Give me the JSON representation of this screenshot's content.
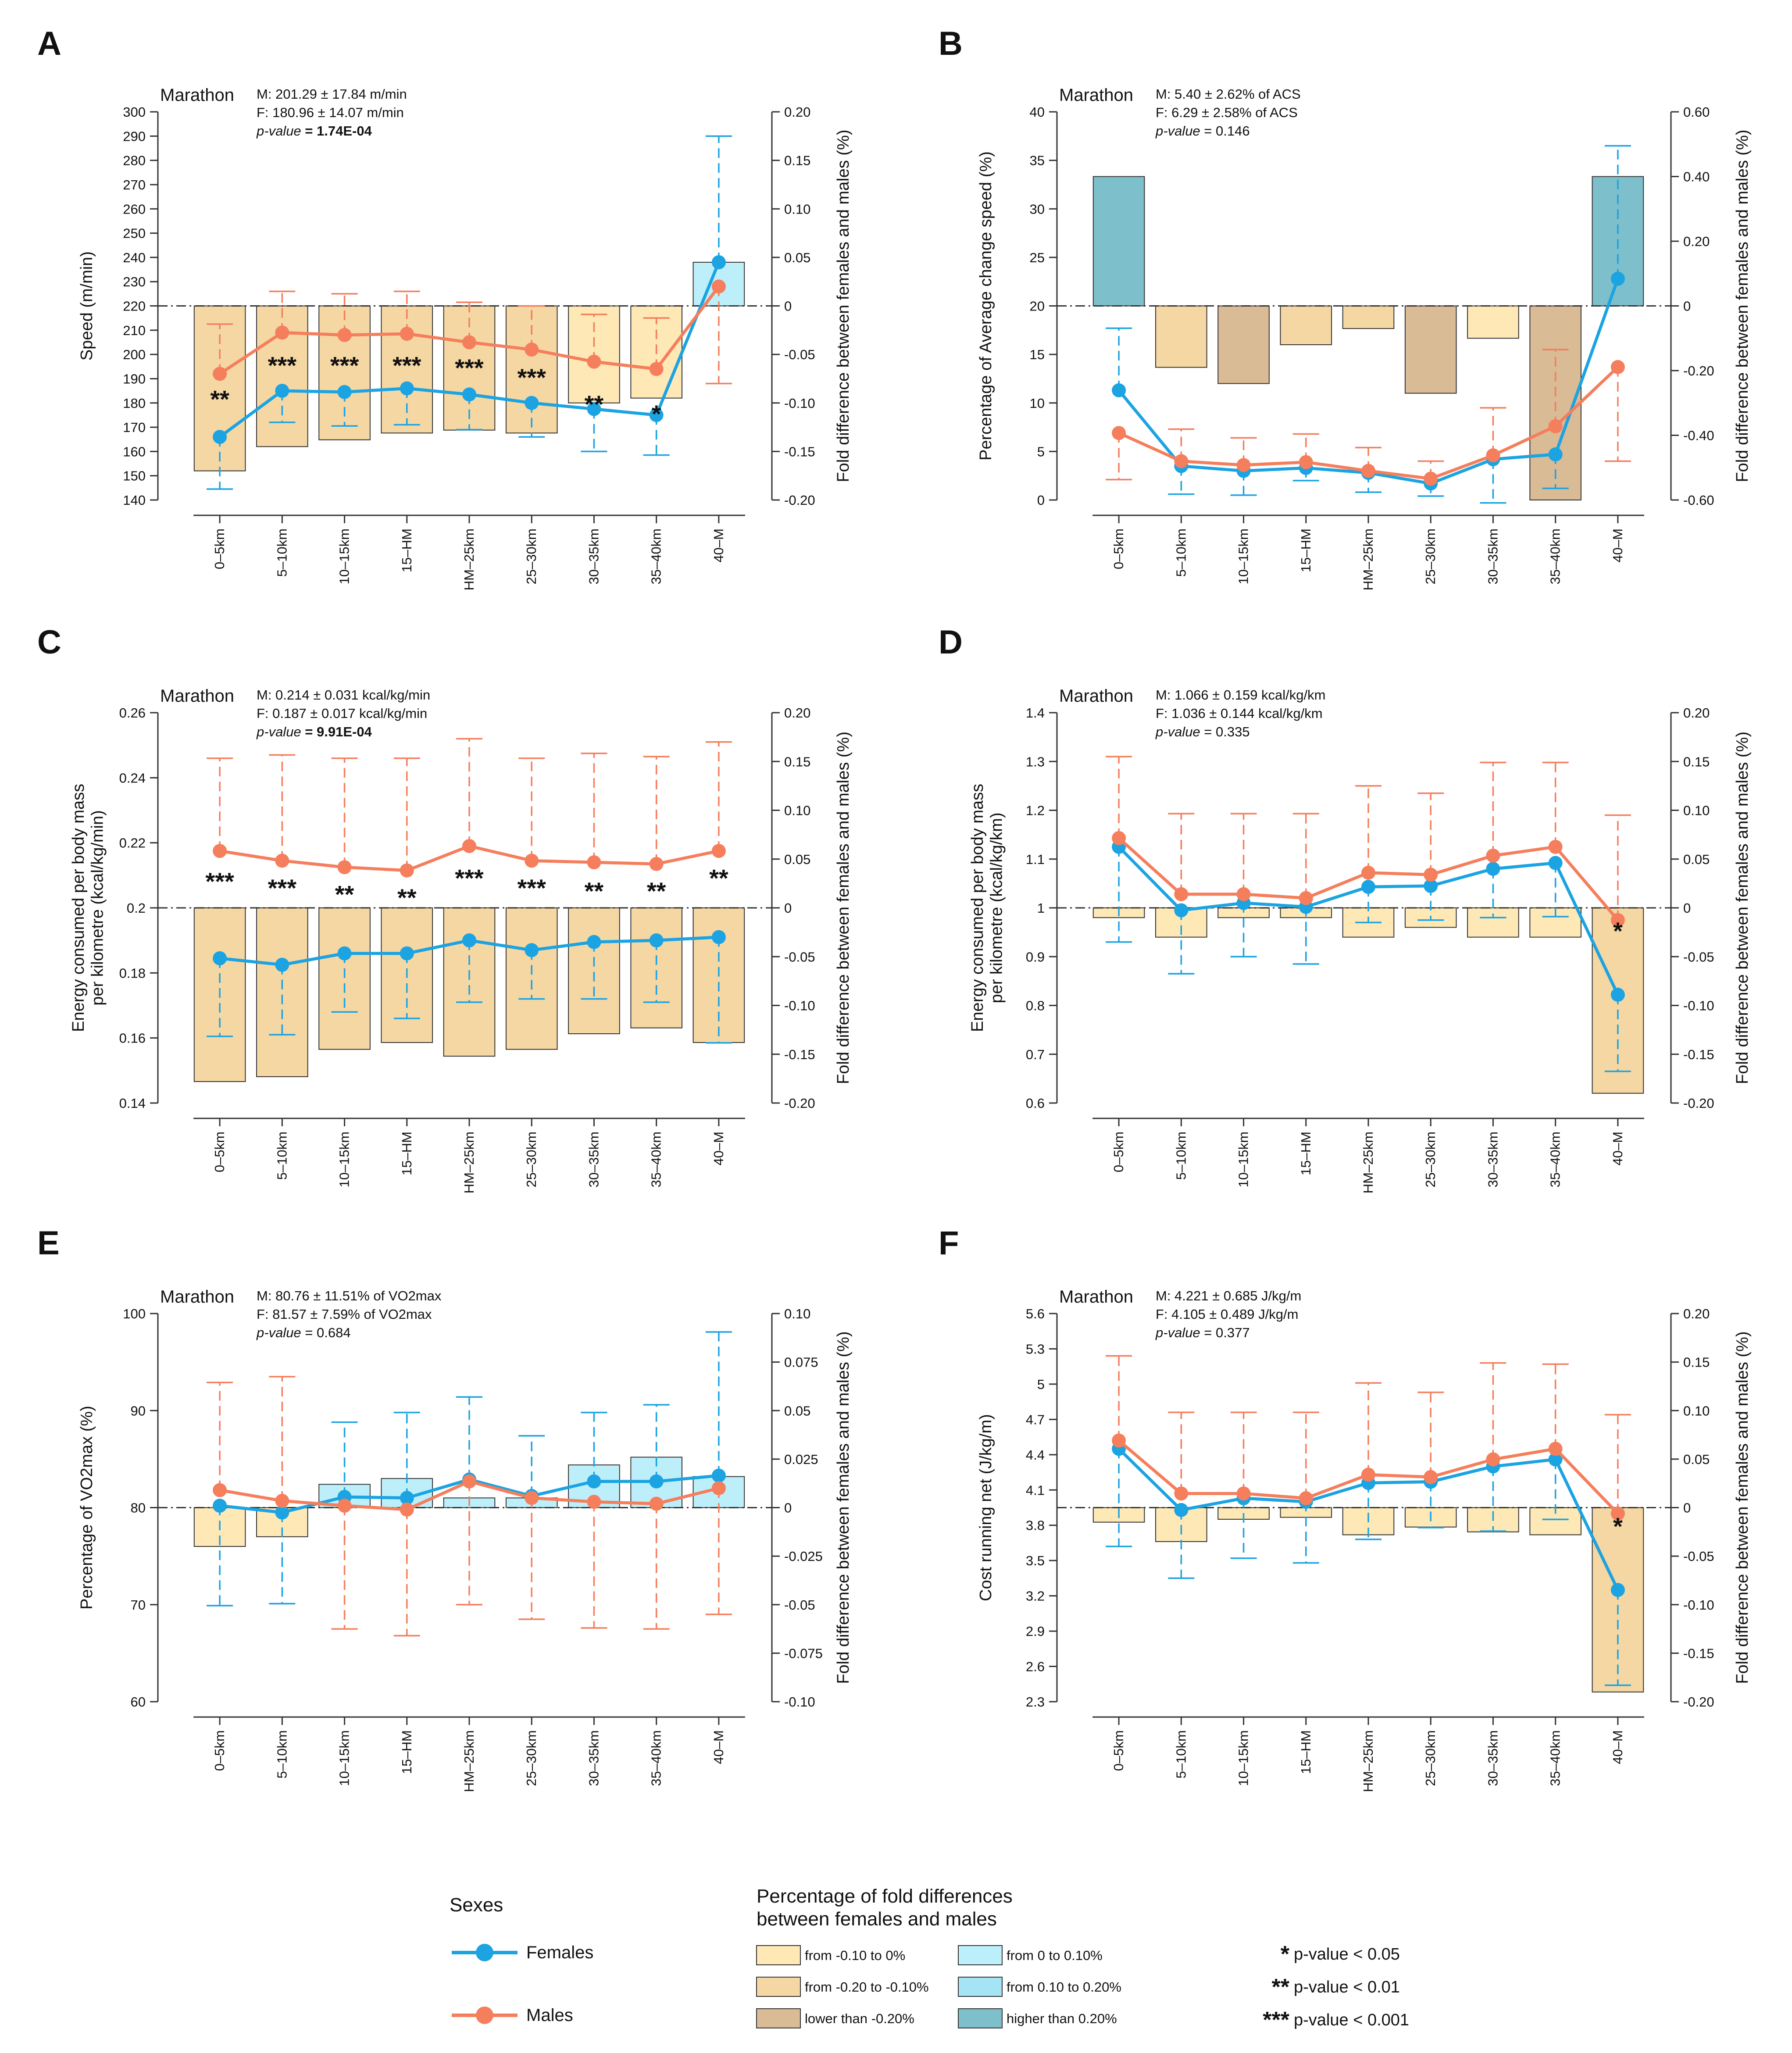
{
  "colors": {
    "female": "#1BA3E2",
    "male": "#F57E5C",
    "bar_neg_small": "#FDE8B6",
    "bar_neg_mid": "#F5D7A3",
    "bar_neg_large": "#D9BB96",
    "bar_pos_small": "#BDEFFB",
    "bar_pos_mid": "#A5E4F5",
    "bar_pos_large": "#7DBFCB",
    "axis": "#333333"
  },
  "chart_data": [
    {
      "letter": "A",
      "type": "bar+line",
      "title": "Marathon",
      "stat_m": "M: 201.29 ± 17.84 m/min",
      "stat_f": "F: 180.96 ± 14.07 m/min",
      "pvalue_label": "p-value",
      "pvalue_text": " = 1.74E-04",
      "pvalue_bold": true,
      "ylabel": "Speed (m/min)",
      "y2label": "Fold difference between females and males (%)",
      "ylim": [
        140,
        300
      ],
      "yticks": [
        140,
        150,
        160,
        170,
        180,
        190,
        200,
        210,
        220,
        230,
        240,
        250,
        260,
        270,
        280,
        290,
        300
      ],
      "y2lim": [
        -0.2,
        0.2
      ],
      "y2ticks": [
        "-0.20",
        "-0.15",
        "-0.10",
        "-0.05",
        "0",
        "0.05",
        "0.10",
        "0.15",
        "0.20"
      ],
      "categories": [
        "0–5km",
        "5–10km",
        "10–15km",
        "15–HM",
        "HM–25km",
        "25–30km",
        "30–35km",
        "35–40km",
        "40–M"
      ],
      "series": [
        {
          "name": "Females",
          "values": [
            166,
            185,
            184.5,
            186,
            183.5,
            180,
            177.5,
            175,
            238
          ],
          "err_high": [
            null,
            null,
            null,
            null,
            null,
            null,
            null,
            null,
            290
          ],
          "err_low": [
            144.5,
            172,
            170.5,
            171,
            169,
            166,
            160,
            158.5,
            null
          ]
        },
        {
          "name": "Males",
          "values": [
            192,
            209,
            208,
            208.5,
            205,
            202,
            197,
            194,
            228
          ],
          "err_high": [
            212.5,
            226,
            225,
            226,
            221.5,
            220,
            216.5,
            215,
            null
          ],
          "err_low": [
            null,
            null,
            null,
            null,
            null,
            null,
            null,
            null,
            188
          ]
        }
      ],
      "fold_diff": [
        -0.17,
        -0.145,
        -0.138,
        -0.131,
        -0.128,
        -0.131,
        -0.1,
        -0.095,
        0.045
      ],
      "bar_class": [
        "mid",
        "mid",
        "mid",
        "mid",
        "mid",
        "mid",
        "small",
        "small",
        "small_pos"
      ],
      "significance": [
        "**",
        "***",
        "***",
        "***",
        "***",
        "***",
        "**",
        "*",
        ""
      ],
      "sig_y": [
        182,
        196,
        196,
        196,
        195,
        191,
        180,
        176,
        null
      ]
    },
    {
      "letter": "B",
      "type": "bar+line",
      "title": "Marathon",
      "stat_m": "M: 5.40 ± 2.62% of ACS",
      "stat_f": "F: 6.29 ± 2.58% of ACS",
      "pvalue_label": "p-value",
      "pvalue_text": " = 0.146",
      "pvalue_bold": false,
      "ylabel": "Percentage of Average change speed (%)",
      "y2label": "Fold difference between females and males (%)",
      "ylim": [
        0,
        40
      ],
      "yticks": [
        0,
        5,
        10,
        15,
        20,
        25,
        30,
        35,
        40
      ],
      "y2lim": [
        -0.6,
        0.6
      ],
      "y2ticks": [
        "-0.60",
        "-0.40",
        "-0.20",
        "0",
        "0.20",
        "0.40",
        "0.60"
      ],
      "categories": [
        "0–5km",
        "5–10km",
        "10–15km",
        "15–HM",
        "HM–25km",
        "25–30km",
        "30–35km",
        "35–40km",
        "40–M"
      ],
      "series": [
        {
          "name": "Females",
          "values": [
            11.3,
            3.5,
            3.0,
            3.3,
            2.8,
            1.7,
            4.2,
            4.7,
            22.8
          ],
          "err_high": [
            17.7,
            null,
            null,
            null,
            null,
            null,
            null,
            null,
            36.5
          ],
          "err_low": [
            null,
            0.6,
            0.5,
            2.0,
            0.8,
            0.4,
            -0.3,
            1.2,
            null
          ]
        },
        {
          "name": "Males",
          "values": [
            6.9,
            4.0,
            3.6,
            3.9,
            3.0,
            2.2,
            4.6,
            7.6,
            13.7
          ],
          "err_high": [
            null,
            7.3,
            6.4,
            6.8,
            5.4,
            4.0,
            9.5,
            15.5,
            null
          ],
          "err_low": [
            2.1,
            null,
            null,
            null,
            null,
            null,
            null,
            null,
            4.0
          ]
        }
      ],
      "fold_diff": [
        0.4,
        -0.19,
        -0.24,
        -0.12,
        -0.07,
        -0.27,
        -0.1,
        -0.6,
        0.4
      ],
      "bar_class": [
        "large_pos",
        "mid",
        "large",
        "mid",
        "mid",
        "large",
        "small",
        "large",
        "large_pos"
      ],
      "significance": [
        "",
        "",
        "",
        "",
        "",
        "",
        "",
        "",
        ""
      ],
      "sig_y": [
        null,
        null,
        null,
        null,
        null,
        null,
        null,
        null,
        null
      ]
    },
    {
      "letter": "C",
      "type": "bar+line",
      "title": "Marathon",
      "stat_m": "M: 0.214 ± 0.031 kcal/kg/min",
      "stat_f": "F: 0.187 ± 0.017 kcal/kg/min",
      "pvalue_label": "p-value",
      "pvalue_text": " = 9.91E-04",
      "pvalue_bold": true,
      "ylabel": "Energy consumed per body mass per kilometre (kcal/kg/min)",
      "y2label": "Fold difference between females and males (%)",
      "ylim": [
        0.14,
        0.26
      ],
      "yticks": [
        "0.14",
        "0.16",
        "0.18",
        "0.2",
        "0.22",
        "0.24",
        "0.26"
      ],
      "y2lim": [
        -0.2,
        0.2
      ],
      "y2ticks": [
        "-0.20",
        "-0.15",
        "-0.10",
        "-0.05",
        "0",
        "0.05",
        "0.10",
        "0.15",
        "0.20"
      ],
      "categories": [
        "0–5km",
        "5–10km",
        "10–15km",
        "15–HM",
        "HM–25km",
        "25–30km",
        "30–35km",
        "35–40km",
        "40–M"
      ],
      "series": [
        {
          "name": "Females",
          "values": [
            0.1845,
            0.1825,
            0.186,
            0.186,
            0.19,
            0.187,
            0.1895,
            0.19,
            0.191
          ],
          "err_high": [
            null,
            null,
            null,
            null,
            null,
            null,
            null,
            null,
            null
          ],
          "err_low": [
            0.1605,
            0.161,
            0.168,
            0.166,
            0.171,
            0.172,
            0.172,
            0.171,
            0.1585
          ]
        },
        {
          "name": "Males",
          "values": [
            0.2175,
            0.2145,
            0.2125,
            0.2115,
            0.219,
            0.2145,
            0.214,
            0.2135,
            0.2175
          ],
          "err_high": [
            0.246,
            0.247,
            0.246,
            0.246,
            0.252,
            0.246,
            0.2475,
            0.2465,
            0.251
          ],
          "err_low": [
            null,
            null,
            null,
            null,
            null,
            null,
            null,
            null,
            null
          ]
        }
      ],
      "fold_diff": [
        -0.178,
        -0.173,
        -0.145,
        -0.138,
        -0.152,
        -0.145,
        -0.129,
        -0.123,
        -0.138
      ],
      "bar_class": [
        "mid",
        "mid",
        "mid",
        "mid",
        "mid",
        "mid",
        "mid",
        "mid",
        "mid"
      ],
      "significance": [
        "***",
        "***",
        "**",
        "**",
        "***",
        "***",
        "**",
        "**",
        "**"
      ],
      "sig_y": [
        0.2085,
        0.2065,
        0.2045,
        0.2035,
        0.2095,
        0.2065,
        0.2055,
        0.2055,
        0.2095
      ]
    },
    {
      "letter": "D",
      "type": "bar+line",
      "title": "Marathon",
      "stat_m": "M: 1.066 ± 0.159 kcal/kg/km",
      "stat_f": "F: 1.036 ± 0.144 kcal/kg/km",
      "pvalue_label": "p-value",
      "pvalue_text": " = 0.335",
      "pvalue_bold": false,
      "ylabel": "Energy consumed per body mass per kilometre (kcal/kg/km)",
      "y2label": "Fold difference between females and males (%)",
      "ylim": [
        0.6,
        1.4
      ],
      "yticks": [
        "0.6",
        "0.7",
        "0.8",
        "0.9",
        "1",
        "1.1",
        "1.2",
        "1.3",
        "1.4"
      ],
      "y2lim": [
        -0.2,
        0.2
      ],
      "y2ticks": [
        "-0.20",
        "-0.15",
        "-0.10",
        "-0.05",
        "0",
        "0.05",
        "0.10",
        "0.15",
        "0.20"
      ],
      "categories": [
        "0–5km",
        "5–10km",
        "10–15km",
        "15–HM",
        "HM–25km",
        "25–30km",
        "30–35km",
        "35–40km",
        "40–M"
      ],
      "series": [
        {
          "name": "Females",
          "values": [
            1.125,
            0.995,
            1.01,
            1.002,
            1.043,
            1.045,
            1.08,
            1.092,
            0.822
          ],
          "err_high": [
            null,
            null,
            null,
            null,
            null,
            null,
            null,
            null,
            null
          ],
          "err_low": [
            0.93,
            0.865,
            0.9,
            0.885,
            0.97,
            0.975,
            0.98,
            0.982,
            0.665
          ]
        },
        {
          "name": "Males",
          "values": [
            1.143,
            1.028,
            1.028,
            1.02,
            1.072,
            1.068,
            1.107,
            1.125,
            0.975
          ],
          "err_high": [
            1.31,
            1.193,
            1.193,
            1.193,
            1.25,
            1.235,
            1.298,
            1.298,
            1.19
          ],
          "err_low": [
            null,
            null,
            null,
            null,
            null,
            null,
            null,
            null,
            null
          ]
        }
      ],
      "fold_diff": [
        -0.01,
        -0.03,
        -0.01,
        -0.01,
        -0.03,
        -0.02,
        -0.03,
        -0.03,
        -0.19
      ],
      "bar_class": [
        "small",
        "small",
        "small",
        "small",
        "small",
        "small",
        "small",
        "small",
        "mid"
      ],
      "significance": [
        "",
        "",
        "",
        "",
        "",
        "",
        "",
        "",
        "*"
      ],
      "sig_y": [
        null,
        null,
        null,
        null,
        null,
        null,
        null,
        null,
        0.955
      ]
    },
    {
      "letter": "E",
      "type": "bar+line",
      "title": "Marathon",
      "stat_m": "M: 80.76 ± 11.51% of VO2max",
      "stat_f": "F: 81.57 ± 7.59% of VO2max",
      "pvalue_label": "p-value",
      "pvalue_text": " = 0.684",
      "pvalue_bold": false,
      "ylabel": "Percentage of VO2max (%)",
      "y2label": "Fold difference between females and males (%)",
      "ylim": [
        60,
        100
      ],
      "yticks": [
        60,
        70,
        80,
        90,
        100
      ],
      "y2lim": [
        -0.1,
        0.1
      ],
      "y2ticks": [
        "-0.10",
        "-0.075",
        "-0.05",
        "-0.025",
        "0",
        "0.025",
        "0.05",
        "0.075",
        "0.10"
      ],
      "categories": [
        "0–5km",
        "5–10km",
        "10–15km",
        "15–HM",
        "HM–25km",
        "25–30km",
        "30–35km",
        "35–40km",
        "40–M"
      ],
      "series": [
        {
          "name": "Females",
          "values": [
            80.2,
            79.5,
            81.1,
            81.0,
            82.9,
            81.2,
            82.7,
            82.7,
            83.3
          ],
          "err_high": [
            null,
            null,
            88.8,
            89.8,
            91.4,
            87.4,
            89.8,
            90.6,
            98.1
          ],
          "err_low": [
            69.9,
            70.1,
            null,
            null,
            null,
            null,
            null,
            null,
            null
          ]
        },
        {
          "name": "Males",
          "values": [
            81.8,
            80.7,
            80.2,
            79.8,
            82.7,
            81.0,
            80.6,
            80.4,
            82.0
          ],
          "err_high": [
            92.9,
            93.5,
            null,
            null,
            null,
            null,
            null,
            null,
            null
          ],
          "err_low": [
            null,
            null,
            67.5,
            66.8,
            70.0,
            68.5,
            67.6,
            67.5,
            69.0
          ]
        }
      ],
      "fold_diff": [
        -0.02,
        -0.015,
        0.012,
        0.015,
        0.005,
        0.005,
        0.022,
        0.026,
        0.016
      ],
      "bar_class": [
        "small",
        "small",
        "small_pos",
        "small_pos",
        "small_pos",
        "small_pos",
        "small_pos",
        "small_pos",
        "small_pos"
      ],
      "significance": [
        "",
        "",
        "",
        "",
        "",
        "",
        "",
        "",
        ""
      ],
      "sig_y": [
        null,
        null,
        null,
        null,
        null,
        null,
        null,
        null,
        null
      ]
    },
    {
      "letter": "F",
      "type": "bar+line",
      "title": "Marathon",
      "stat_m": "M: 4.221 ± 0.685 J/kg/m",
      "stat_f": "F: 4.105 ± 0.489 J/kg/m",
      "pvalue_label": "p-value",
      "pvalue_text": " = 0.377",
      "pvalue_bold": false,
      "ylabel": "Cost running net (J/kg/m)",
      "y2label": "Fold difference between females and males (%)",
      "ylim": [
        2.3,
        5.6
      ],
      "yticks": [
        "2.3",
        "2.6",
        "2.9",
        "3.2",
        "3.5",
        "3.8",
        "4.1",
        "4.4",
        "4.7",
        "5",
        "5.3",
        "5.6"
      ],
      "y2lim": [
        -0.2,
        0.2
      ],
      "y2ticks": [
        "-0.20",
        "-0.15",
        "-0.10",
        "-0.05",
        "0",
        "0.05",
        "0.10",
        "0.15",
        "0.20"
      ],
      "categories": [
        "0–5km",
        "5–10km",
        "10–15km",
        "15–HM",
        "HM–25km",
        "25–30km",
        "30–35km",
        "35–40km",
        "40–M"
      ],
      "series": [
        {
          "name": "Females",
          "values": [
            4.45,
            3.93,
            4.03,
            4.0,
            4.16,
            4.17,
            4.3,
            4.36,
            3.25
          ],
          "err_high": [
            null,
            null,
            null,
            null,
            null,
            null,
            null,
            null,
            null
          ],
          "err_low": [
            3.62,
            3.35,
            3.52,
            3.48,
            3.68,
            3.78,
            3.75,
            3.85,
            2.44
          ]
        },
        {
          "name": "Males",
          "values": [
            4.52,
            4.07,
            4.07,
            4.03,
            4.23,
            4.21,
            4.36,
            4.45,
            3.9
          ],
          "err_high": [
            5.24,
            4.76,
            4.76,
            4.76,
            5.01,
            4.93,
            5.18,
            5.17,
            4.74
          ],
          "err_low": [
            null,
            null,
            null,
            null,
            null,
            null,
            null,
            null,
            null
          ]
        }
      ],
      "fold_diff": [
        -0.015,
        -0.035,
        -0.012,
        -0.01,
        -0.028,
        -0.02,
        -0.025,
        -0.028,
        -0.19
      ],
      "bar_class": [
        "small",
        "small",
        "small",
        "small",
        "small",
        "small",
        "small",
        "small",
        "mid"
      ],
      "significance": [
        "",
        "",
        "",
        "",
        "",
        "",
        "",
        "",
        "*"
      ],
      "sig_y": [
        null,
        null,
        null,
        null,
        null,
        null,
        null,
        null,
        3.8
      ]
    }
  ],
  "legend": {
    "sexes_title": "Sexes",
    "female_label": "Females",
    "male_label": "Males",
    "fold_title_1": "Percentage of fold differences",
    "fold_title_2": "between females and males",
    "bins": [
      {
        "label": "from -0.10 to 0%",
        "cls": "small"
      },
      {
        "label": "from -0.20 to -0.10%",
        "cls": "mid"
      },
      {
        "label": "lower than -0.20%",
        "cls": "large"
      },
      {
        "label": "from 0 to 0.10%",
        "cls": "small_pos"
      },
      {
        "label": "from 0.10 to 0.20%",
        "cls": "mid_pos"
      },
      {
        "label": "higher than 0.20%",
        "cls": "large_pos"
      }
    ],
    "sig_items": [
      {
        "stars": "*",
        "text": "p-value < 0.05"
      },
      {
        "stars": "**",
        "text": "p-value < 0.01"
      },
      {
        "stars": "***",
        "text": "p-value < 0.001"
      }
    ]
  }
}
